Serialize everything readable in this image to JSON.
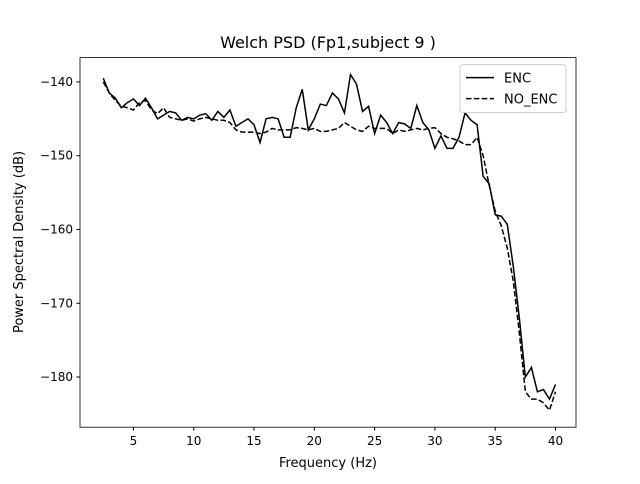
{
  "chart_data": {
    "type": "line",
    "title": "Welch PSD (Fp1,subject 9 )",
    "xlabel": "Frequency (Hz)",
    "ylabel": "Power Spectral Density (dB)",
    "x": [
      2.5,
      3,
      3.5,
      4,
      4.5,
      5,
      5.5,
      6,
      6.5,
      7,
      7.5,
      8,
      8.5,
      9,
      9.5,
      10,
      10.5,
      11,
      11.5,
      12,
      12.5,
      13,
      13.5,
      14,
      14.5,
      15,
      15.5,
      16,
      16.5,
      17,
      17.5,
      18,
      18.5,
      19,
      19.5,
      20,
      20.5,
      21,
      21.5,
      22,
      22.5,
      23,
      23.5,
      24,
      24.5,
      25,
      25.5,
      26,
      26.5,
      27,
      27.5,
      28,
      28.5,
      29,
      29.5,
      30,
      30.5,
      31,
      31.5,
      32,
      32.5,
      33,
      33.5,
      34,
      34.5,
      35,
      35.5,
      36,
      36.5,
      37,
      37.5,
      38,
      38.5,
      39,
      39.5,
      40
    ],
    "series": [
      {
        "name": "ENC",
        "color": "#000000",
        "linestyle": "solid",
        "values": [
          -139.5,
          -141.5,
          -142.2,
          -143.5,
          -142.8,
          -142.3,
          -143.2,
          -142.2,
          -143.5,
          -145,
          -144.5,
          -144,
          -144.2,
          -145.2,
          -144.8,
          -145,
          -144.5,
          -144.3,
          -145.2,
          -144,
          -144.8,
          -143.8,
          -146,
          -145.5,
          -145,
          -145.8,
          -148.2,
          -145,
          -144.8,
          -145,
          -147.5,
          -147.5,
          -143.5,
          -141,
          -146.5,
          -145,
          -143,
          -143.2,
          -141.5,
          -142.3,
          -144.2,
          -139,
          -140.3,
          -144,
          -143.3,
          -147,
          -144.5,
          -145.5,
          -147,
          -145.5,
          -145.7,
          -146.3,
          -143.2,
          -145.5,
          -146.5,
          -149,
          -147.3,
          -149,
          -149,
          -147.5,
          -144.2,
          -145.2,
          -145.8,
          -152.8,
          -153.8,
          -158,
          -158.2,
          -159.3,
          -165,
          -172,
          -180,
          -178.7,
          -182,
          -181.7,
          -183,
          -181
        ]
      },
      {
        "name": "NO_ENC",
        "color": "#000000",
        "linestyle": "dashed",
        "values": [
          -140,
          -141.5,
          -142.5,
          -143.3,
          -143.5,
          -143.8,
          -142.8,
          -142.5,
          -143.8,
          -144.3,
          -143.5,
          -144.8,
          -145,
          -145.2,
          -145,
          -145.3,
          -145,
          -144.8,
          -145,
          -145.2,
          -145.2,
          -145.5,
          -146.5,
          -146.8,
          -146.8,
          -146.8,
          -147,
          -146.8,
          -146.3,
          -146.5,
          -146.5,
          -146.5,
          -146.2,
          -146.3,
          -146.5,
          -146.3,
          -146.7,
          -146.7,
          -146.5,
          -146.3,
          -145.5,
          -146,
          -146.5,
          -146.7,
          -146,
          -146.3,
          -146.3,
          -146.3,
          -147,
          -146.5,
          -146.7,
          -146.5,
          -146.3,
          -146.5,
          -146.3,
          -146.2,
          -147,
          -147.5,
          -147.7,
          -148,
          -148.5,
          -148.5,
          -147.5,
          -150,
          -154,
          -157.5,
          -159.5,
          -162.5,
          -167,
          -174,
          -182,
          -183,
          -183,
          -183.5,
          -184.5,
          -182
        ]
      }
    ],
    "xlim": [
      0.57,
      41.7
    ],
    "ylim": [
      -186.8,
      -136.7
    ],
    "xticks": [
      5,
      10,
      15,
      20,
      25,
      30,
      35,
      40
    ],
    "yticks": [
      {
        "value": -180,
        "label": "−180"
      },
      {
        "value": -170,
        "label": "−170"
      },
      {
        "value": -160,
        "label": "−160"
      },
      {
        "value": -150,
        "label": "−150"
      },
      {
        "value": -140,
        "label": "−140"
      }
    ],
    "legend": "upper right",
    "grid": false
  }
}
